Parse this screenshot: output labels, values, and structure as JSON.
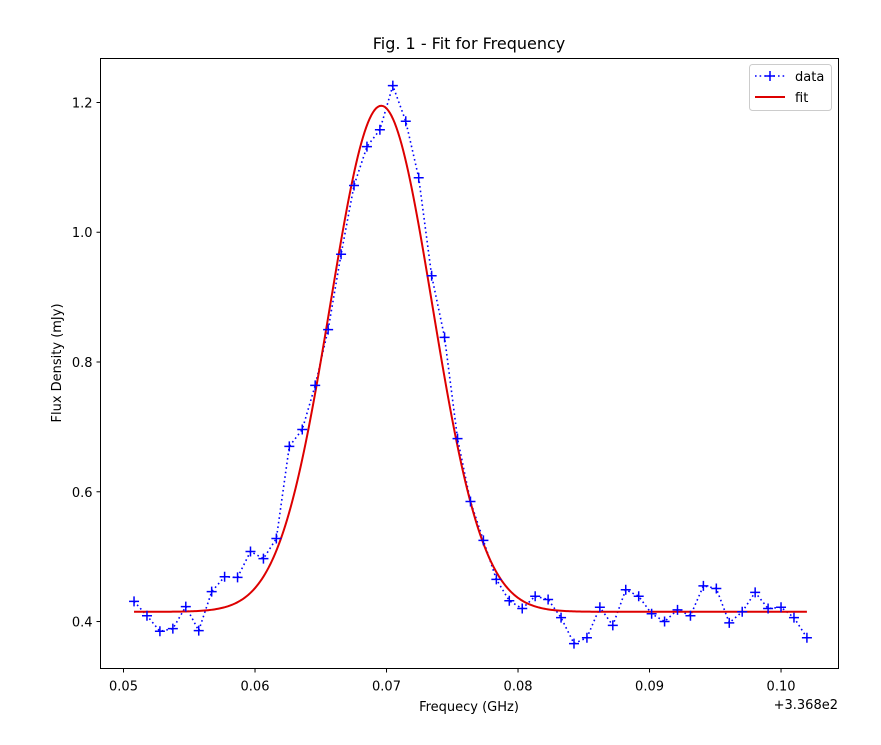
{
  "chart_data": {
    "type": "line",
    "title": "Fig. 1 - Fit for Frequency",
    "xlabel": "Frequecy (GHz)",
    "ylabel": "Flux Density (mJy)",
    "x_offset_label": "+3.368e2",
    "xlim": [
      0.04825,
      0.10437
    ],
    "ylim": [
      0.3276,
      1.2678
    ],
    "xticks": [
      0.05,
      0.06,
      0.07,
      0.08,
      0.09,
      0.1
    ],
    "xtick_labels": [
      "0.05",
      "0.06",
      "0.07",
      "0.08",
      "0.09",
      "0.10"
    ],
    "yticks": [
      0.4,
      0.6,
      0.8,
      1.0,
      1.2
    ],
    "ytick_labels": [
      "0.4",
      "0.6",
      "0.8",
      "1.0",
      "1.2"
    ],
    "grid": false,
    "legend_position": "top-right",
    "x_start": 0.0508,
    "x_step": 0.000984,
    "series": [
      {
        "name": "data",
        "color": "#0000ff",
        "style": "dotted-plus",
        "values": [
          0.431,
          0.409,
          0.385,
          0.389,
          0.423,
          0.386,
          0.446,
          0.469,
          0.468,
          0.508,
          0.497,
          0.528,
          0.67,
          0.696,
          0.764,
          0.85,
          0.966,
          1.072,
          1.132,
          1.158,
          1.226,
          1.171,
          1.084,
          0.933,
          0.838,
          0.682,
          0.585,
          0.525,
          0.465,
          0.432,
          0.42,
          0.439,
          0.434,
          0.406,
          0.366,
          0.375,
          0.422,
          0.394,
          0.449,
          0.439,
          0.412,
          0.4,
          0.418,
          0.409,
          0.455,
          0.451,
          0.398,
          0.415,
          0.445,
          0.42,
          0.422,
          0.406,
          0.375
        ]
      },
      {
        "name": "fit",
        "color": "#dd0000",
        "style": "solid",
        "model": "gaussian",
        "params": {
          "offset": 0.415,
          "amplitude": 0.78,
          "center": 0.0696,
          "sigma": 0.00388
        }
      }
    ]
  }
}
